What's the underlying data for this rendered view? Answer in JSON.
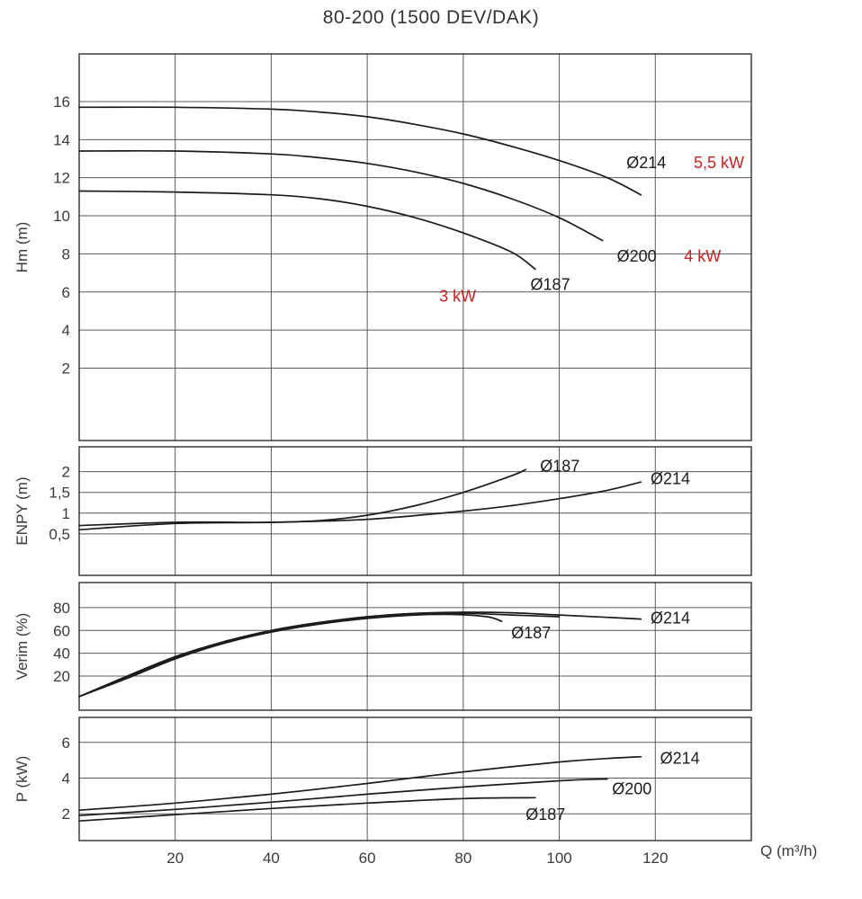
{
  "colors": {
    "curve": "#1c1c1c",
    "grid": "#5a5a5a",
    "border": "#2f2f2f",
    "text": "#3a3a3a",
    "power_label": "#cc2020"
  },
  "chart_data": {
    "type": "line",
    "title": "80-200 (1500 DEV/DAK)",
    "xlabel": "Q (m³/h)",
    "xlim": [
      0,
      140
    ],
    "xticks": [
      {
        "v": 20,
        "t": "20"
      },
      {
        "v": 40,
        "t": "40"
      },
      {
        "v": 60,
        "t": "60"
      },
      {
        "v": 80,
        "t": "80"
      },
      {
        "v": 100,
        "t": "100"
      },
      {
        "v": 120,
        "t": "120"
      }
    ],
    "panels": [
      {
        "name": "head",
        "ylabel": "Hm (m)",
        "ylim": [
          -1.8,
          18.5
        ],
        "yticks": [
          {
            "v": 2,
            "t": "2"
          },
          {
            "v": 4,
            "t": "4"
          },
          {
            "v": 6,
            "t": "6"
          },
          {
            "v": 8,
            "t": "8"
          },
          {
            "v": 10,
            "t": "10"
          },
          {
            "v": 12,
            "t": "12"
          },
          {
            "v": 14,
            "t": "14"
          },
          {
            "v": 16,
            "t": "16"
          }
        ],
        "series": [
          {
            "name": "Ø214",
            "points": [
              [
                0,
                15.7
              ],
              [
                20,
                15.7
              ],
              [
                40,
                15.6
              ],
              [
                50,
                15.45
              ],
              [
                60,
                15.2
              ],
              [
                70,
                14.8
              ],
              [
                80,
                14.3
              ],
              [
                90,
                13.65
              ],
              [
                100,
                12.9
              ],
              [
                110,
                12.0
              ],
              [
                117,
                11.1
              ]
            ]
          },
          {
            "name": "Ø200",
            "points": [
              [
                0,
                13.4
              ],
              [
                20,
                13.4
              ],
              [
                40,
                13.25
              ],
              [
                50,
                13.05
              ],
              [
                60,
                12.75
              ],
              [
                70,
                12.3
              ],
              [
                80,
                11.7
              ],
              [
                90,
                10.9
              ],
              [
                100,
                9.9
              ],
              [
                109,
                8.7
              ]
            ]
          },
          {
            "name": "Ø187",
            "points": [
              [
                0,
                11.3
              ],
              [
                20,
                11.25
              ],
              [
                40,
                11.1
              ],
              [
                50,
                10.9
              ],
              [
                60,
                10.5
              ],
              [
                70,
                9.9
              ],
              [
                80,
                9.1
              ],
              [
                90,
                8.1
              ],
              [
                95,
                7.2
              ]
            ]
          }
        ],
        "annotations": [
          {
            "text": "Ø214",
            "x": 114,
            "y": 12.5,
            "color": "#1c1c1c"
          },
          {
            "text": "5,5 kW",
            "x": 128,
            "y": 12.5,
            "color": "#cc2020"
          },
          {
            "text": "Ø200",
            "x": 112,
            "y": 7.6,
            "color": "#1c1c1c"
          },
          {
            "text": "4 kW",
            "x": 126,
            "y": 7.6,
            "color": "#cc2020"
          },
          {
            "text": "Ø187",
            "x": 94,
            "y": 6.1,
            "color": "#1c1c1c"
          },
          {
            "text": "3 kW",
            "x": 75,
            "y": 5.5,
            "color": "#cc2020"
          }
        ]
      },
      {
        "name": "npsh",
        "ylabel": "ENPY (m)",
        "ylim": [
          -0.5,
          2.6
        ],
        "yticks": [
          {
            "v": 0.5,
            "t": "0,5"
          },
          {
            "v": 1,
            "t": "1"
          },
          {
            "v": 1.5,
            "t": "1,5"
          },
          {
            "v": 2,
            "t": "2"
          }
        ],
        "series": [
          {
            "name": "Ø187",
            "points": [
              [
                0,
                0.7
              ],
              [
                20,
                0.78
              ],
              [
                40,
                0.78
              ],
              [
                50,
                0.82
              ],
              [
                60,
                0.95
              ],
              [
                70,
                1.18
              ],
              [
                80,
                1.5
              ],
              [
                90,
                1.9
              ],
              [
                93,
                2.05
              ]
            ]
          },
          {
            "name": "Ø214",
            "points": [
              [
                0,
                0.6
              ],
              [
                20,
                0.75
              ],
              [
                40,
                0.78
              ],
              [
                60,
                0.85
              ],
              [
                80,
                1.05
              ],
              [
                90,
                1.18
              ],
              [
                100,
                1.35
              ],
              [
                110,
                1.55
              ],
              [
                117,
                1.75
              ]
            ]
          }
        ],
        "annotations": [
          {
            "text": "Ø187",
            "x": 96,
            "y": 2.0,
            "color": "#1c1c1c"
          },
          {
            "text": "Ø214",
            "x": 119,
            "y": 1.7,
            "color": "#1c1c1c"
          }
        ]
      },
      {
        "name": "efficiency",
        "ylabel": "Verim (%)",
        "ylim": [
          -10,
          102
        ],
        "yticks": [
          {
            "v": 20,
            "t": "20"
          },
          {
            "v": 40,
            "t": "40"
          },
          {
            "v": 60,
            "t": "60"
          },
          {
            "v": 80,
            "t": "80"
          }
        ],
        "series": [
          {
            "name": "Ø214",
            "points": [
              [
                0,
                2
              ],
              [
                10,
                20
              ],
              [
                20,
                37
              ],
              [
                30,
                50
              ],
              [
                40,
                60
              ],
              [
                50,
                67
              ],
              [
                60,
                72
              ],
              [
                70,
                75
              ],
              [
                80,
                76
              ],
              [
                90,
                75.5
              ],
              [
                100,
                73.5
              ],
              [
                110,
                71.5
              ],
              [
                117,
                70
              ]
            ]
          },
          {
            "name": "Ø200",
            "points": [
              [
                0,
                2
              ],
              [
                10,
                19
              ],
              [
                20,
                36
              ],
              [
                30,
                49.5
              ],
              [
                40,
                59.5
              ],
              [
                50,
                66.5
              ],
              [
                60,
                71.5
              ],
              [
                70,
                74.5
              ],
              [
                80,
                75
              ],
              [
                90,
                73.5
              ],
              [
                100,
                72
              ]
            ]
          },
          {
            "name": "Ø187",
            "points": [
              [
                0,
                2
              ],
              [
                10,
                18
              ],
              [
                20,
                35
              ],
              [
                30,
                48.5
              ],
              [
                40,
                58.5
              ],
              [
                50,
                65.5
              ],
              [
                60,
                70.5
              ],
              [
                70,
                73.5
              ],
              [
                78,
                74
              ],
              [
                85,
                72
              ],
              [
                88,
                68
              ]
            ]
          }
        ],
        "annotations": [
          {
            "text": "Ø187",
            "x": 90,
            "y": 53,
            "color": "#1c1c1c"
          },
          {
            "text": "Ø214",
            "x": 119,
            "y": 66,
            "color": "#1c1c1c"
          }
        ]
      },
      {
        "name": "power",
        "ylabel": "P (kW)",
        "ylim": [
          0.5,
          7.4
        ],
        "yticks": [
          {
            "v": 2,
            "t": "2"
          },
          {
            "v": 4,
            "t": "4"
          },
          {
            "v": 6,
            "t": "6"
          }
        ],
        "series": [
          {
            "name": "Ø214",
            "points": [
              [
                0,
                2.2
              ],
              [
                20,
                2.6
              ],
              [
                40,
                3.1
              ],
              [
                60,
                3.7
              ],
              [
                80,
                4.35
              ],
              [
                100,
                4.9
              ],
              [
                110,
                5.1
              ],
              [
                117,
                5.2
              ]
            ]
          },
          {
            "name": "Ø200",
            "points": [
              [
                0,
                1.9
              ],
              [
                20,
                2.25
              ],
              [
                40,
                2.65
              ],
              [
                60,
                3.1
              ],
              [
                80,
                3.5
              ],
              [
                100,
                3.85
              ],
              [
                110,
                3.95
              ]
            ]
          },
          {
            "name": "Ø187",
            "points": [
              [
                0,
                1.6
              ],
              [
                20,
                1.95
              ],
              [
                40,
                2.3
              ],
              [
                60,
                2.6
              ],
              [
                80,
                2.85
              ],
              [
                95,
                2.9
              ]
            ]
          }
        ],
        "annotations": [
          {
            "text": "Ø214",
            "x": 121,
            "y": 4.8,
            "color": "#1c1c1c"
          },
          {
            "text": "Ø200",
            "x": 111,
            "y": 3.1,
            "color": "#1c1c1c"
          },
          {
            "text": "Ø187",
            "x": 93,
            "y": 1.65,
            "color": "#1c1c1c"
          }
        ]
      }
    ]
  }
}
